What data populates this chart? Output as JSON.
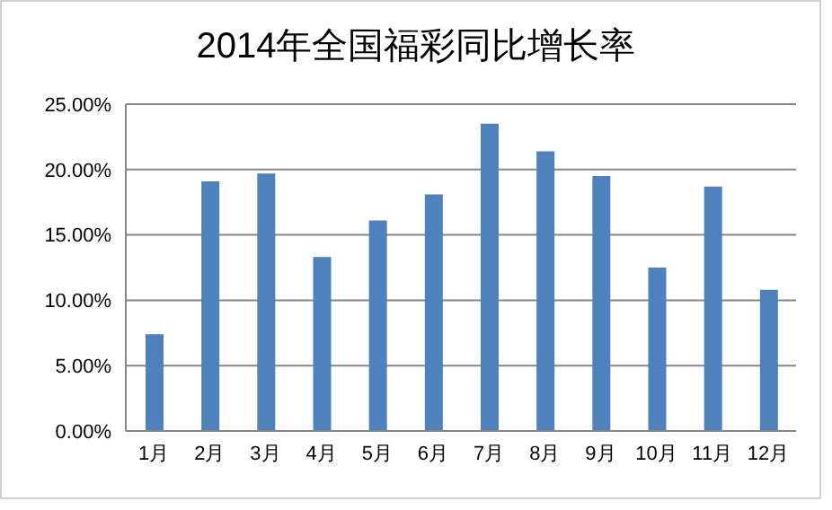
{
  "chart_data": {
    "type": "bar",
    "title": "2014年全国福彩同比增长率",
    "categories": [
      "1月",
      "2月",
      "3月",
      "4月",
      "5月",
      "6月",
      "7月",
      "8月",
      "9月",
      "10月",
      "11月",
      "12月"
    ],
    "values": [
      7.4,
      19.1,
      19.7,
      13.3,
      16.1,
      18.1,
      23.5,
      21.4,
      19.5,
      12.5,
      18.7,
      10.8
    ],
    "color": "#4f81bd",
    "ylim": [
      0,
      25
    ],
    "yticks": [
      {
        "value": 0,
        "label": "0.00%"
      },
      {
        "value": 5,
        "label": "5.00%"
      },
      {
        "value": 10,
        "label": "10.00%"
      },
      {
        "value": 15,
        "label": "15.00%"
      },
      {
        "value": 20,
        "label": "20.00%"
      },
      {
        "value": 25,
        "label": "25.00%"
      }
    ],
    "grid": "y"
  }
}
